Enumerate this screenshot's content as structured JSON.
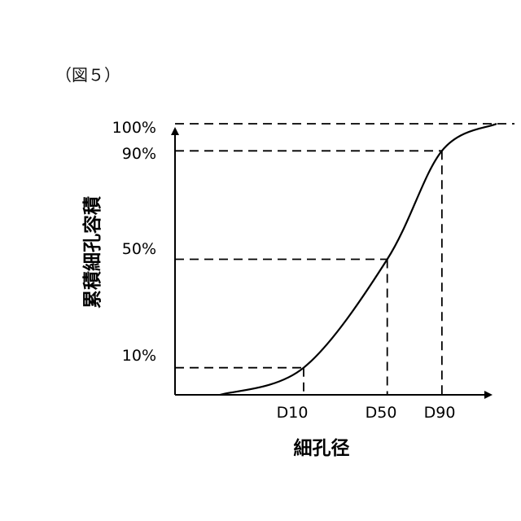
{
  "figure_label": "（図５）",
  "chart_data": {
    "type": "line",
    "xlabel": "細孔径",
    "ylabel": "累積細孔容積",
    "y_ticks": [
      "100%",
      "90%",
      "50%",
      "10%"
    ],
    "x_ticks": [
      "D10",
      "D50",
      "D90"
    ],
    "y_tick_values": [
      100,
      90,
      50,
      10
    ],
    "ylim": [
      0,
      100
    ],
    "grid": false,
    "series": [
      {
        "values": [
          {
            "x": 0.14,
            "y": 0
          },
          {
            "x": 0.4,
            "y": 10
          },
          {
            "x": 0.66,
            "y": 50
          },
          {
            "x": 0.83,
            "y": 90
          },
          {
            "x": 1.0,
            "y": 100
          }
        ]
      }
    ],
    "reference_lines": [
      {
        "label": "D10",
        "x": 0.4,
        "y": 10
      },
      {
        "label": "D50",
        "x": 0.66,
        "y": 50
      },
      {
        "label": "D90",
        "x": 0.83,
        "y": 90
      }
    ],
    "top_reference_y": 100
  }
}
